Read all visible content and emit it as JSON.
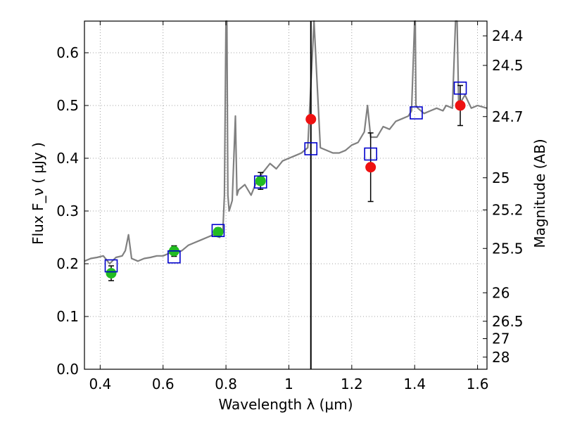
{
  "chart_data": {
    "type": "scatter",
    "xlabel": "Wavelength  λ (μm)",
    "ylabel": "Flux  F_ν  ( μJy )",
    "ylabel_right": "Magnitude (AB)",
    "xlim": [
      0.35,
      1.63
    ],
    "ylim": [
      0.0,
      0.66
    ],
    "x_ticks": [
      0.4,
      0.6,
      0.8,
      1.0,
      1.2,
      1.4,
      1.6
    ],
    "x_tick_labels": [
      "0.4",
      "0.6",
      "0.8",
      "1",
      "1.2",
      "1.4",
      "1.6"
    ],
    "y_ticks": [
      0.0,
      0.1,
      0.2,
      0.3,
      0.4,
      0.5,
      0.6
    ],
    "y_tick_labels": [
      "0.0",
      "0.1",
      "0.2",
      "0.3",
      "0.4",
      "0.5",
      "0.6"
    ],
    "right_ticks": [
      {
        "label": "24.4",
        "flux": 0.632
      },
      {
        "label": "24.5",
        "flux": 0.576
      },
      {
        "label": "24.7",
        "flux": 0.479
      },
      {
        "label": "25",
        "flux": 0.363
      },
      {
        "label": "25.2",
        "flux": 0.302
      },
      {
        "label": "25.5",
        "flux": 0.229
      },
      {
        "label": "26",
        "flux": 0.145
      },
      {
        "label": "26.5",
        "flux": 0.091
      },
      {
        "label": "27",
        "flux": 0.058
      },
      {
        "label": "28",
        "flux": 0.023
      }
    ],
    "grid": true,
    "vline_x": 1.07,
    "colors": {
      "spectrum": "#808080",
      "green_points": "#22bb22",
      "red_points": "#ee1111",
      "model_squares": "#0000cc",
      "errorbars": "#000000",
      "vline": "#000000"
    },
    "spectrum": {
      "x": [
        0.35,
        0.37,
        0.39,
        0.41,
        0.43,
        0.45,
        0.47,
        0.48,
        0.49,
        0.5,
        0.52,
        0.54,
        0.56,
        0.58,
        0.6,
        0.62,
        0.64,
        0.66,
        0.68,
        0.7,
        0.72,
        0.74,
        0.76,
        0.78,
        0.79,
        0.795,
        0.8,
        0.803,
        0.806,
        0.81,
        0.82,
        0.83,
        0.835,
        0.84,
        0.86,
        0.88,
        0.9,
        0.92,
        0.94,
        0.96,
        0.98,
        1.0,
        1.02,
        1.04,
        1.06,
        1.08,
        1.1,
        1.12,
        1.14,
        1.16,
        1.18,
        1.2,
        1.22,
        1.24,
        1.25,
        1.26,
        1.28,
        1.3,
        1.32,
        1.34,
        1.36,
        1.38,
        1.39,
        1.4,
        1.402,
        1.404,
        1.41,
        1.43,
        1.45,
        1.47,
        1.49,
        1.5,
        1.52,
        1.53,
        1.535,
        1.54,
        1.56,
        1.58,
        1.6,
        1.63
      ],
      "y": [
        0.205,
        0.21,
        0.212,
        0.215,
        0.2,
        0.212,
        0.215,
        0.225,
        0.255,
        0.21,
        0.205,
        0.21,
        0.212,
        0.215,
        0.215,
        0.22,
        0.22,
        0.225,
        0.235,
        0.24,
        0.245,
        0.25,
        0.255,
        0.25,
        0.26,
        0.33,
        0.66,
        0.66,
        0.33,
        0.3,
        0.32,
        0.48,
        0.33,
        0.34,
        0.35,
        0.33,
        0.36,
        0.375,
        0.39,
        0.38,
        0.395,
        0.4,
        0.405,
        0.41,
        0.42,
        0.66,
        0.42,
        0.415,
        0.41,
        0.41,
        0.415,
        0.425,
        0.43,
        0.45,
        0.5,
        0.44,
        0.44,
        0.46,
        0.455,
        0.47,
        0.475,
        0.48,
        0.49,
        0.66,
        0.66,
        0.5,
        0.495,
        0.485,
        0.49,
        0.495,
        0.49,
        0.5,
        0.495,
        0.66,
        0.66,
        0.5,
        0.52,
        0.495,
        0.5,
        0.495
      ]
    },
    "green_points": {
      "x": [
        0.435,
        0.635,
        0.775,
        0.91
      ],
      "y": [
        0.182,
        0.224,
        0.26,
        0.357
      ],
      "err": [
        0.014,
        0.01,
        0.008,
        0.016
      ]
    },
    "red_points": {
      "x": [
        1.07,
        1.26,
        1.545
      ],
      "y": [
        0.474,
        0.383,
        0.5
      ],
      "err": [
        0.0,
        0.065,
        0.038
      ]
    },
    "model_squares": {
      "x": [
        0.435,
        0.635,
        0.775,
        0.91,
        1.07,
        1.26,
        1.405,
        1.545
      ],
      "y": [
        0.196,
        0.213,
        0.263,
        0.355,
        0.418,
        0.408,
        0.486,
        0.533
      ]
    }
  }
}
